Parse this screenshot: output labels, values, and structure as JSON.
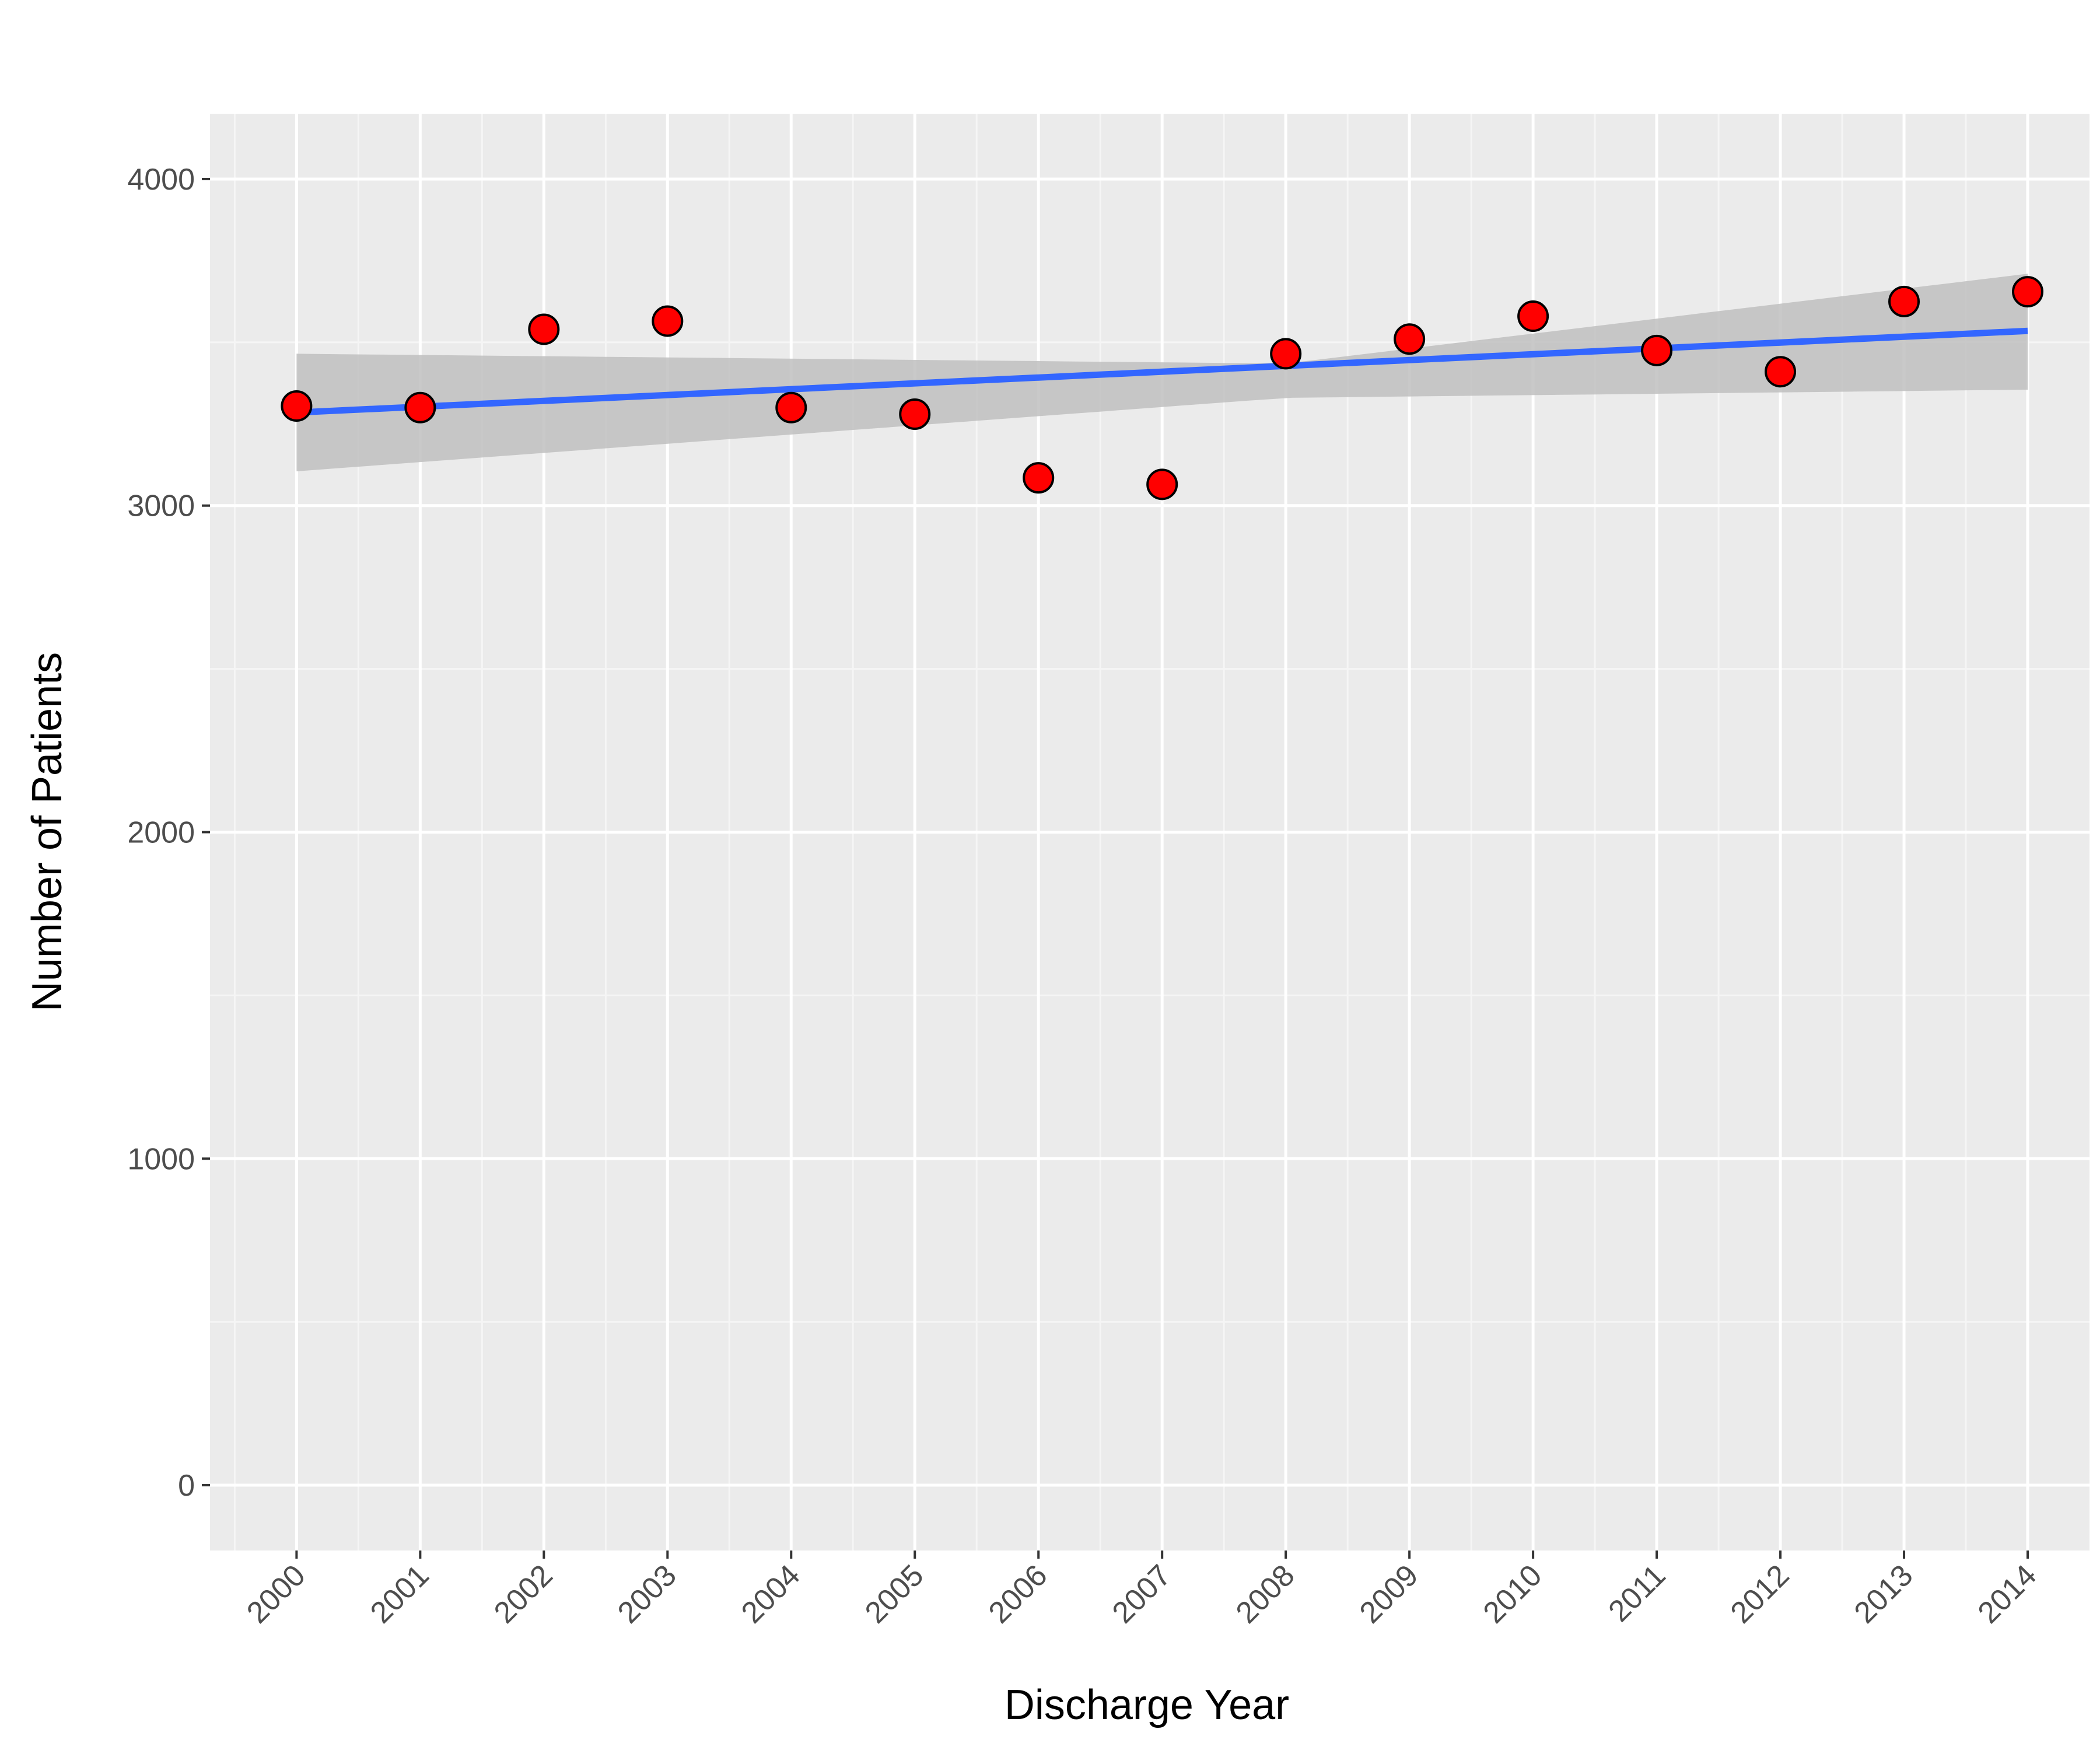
{
  "chart_data": {
    "type": "scatter",
    "title": "",
    "xlabel": "Discharge Year",
    "ylabel": "Number of Patients",
    "x": [
      2000,
      2001,
      2002,
      2003,
      2004,
      2005,
      2006,
      2007,
      2008,
      2009,
      2010,
      2011,
      2012,
      2013,
      2014
    ],
    "x_tick_labels": [
      "2000",
      "2001",
      "2002",
      "2003",
      "2004",
      "2005",
      "2006",
      "2007",
      "2008",
      "2009",
      "2010",
      "2011",
      "2012",
      "2013",
      "2014"
    ],
    "y_ticks": [
      0,
      1000,
      2000,
      3000,
      4000
    ],
    "y_tick_labels": [
      "0",
      "1000",
      "2000",
      "3000",
      "4000"
    ],
    "xlim": [
      1999.3,
      2014.5
    ],
    "ylim": [
      -200,
      4200
    ],
    "grid": true,
    "series": [
      {
        "type": "points",
        "values": [
          3305,
          3300,
          3540,
          3565,
          3300,
          3280,
          3085,
          3065,
          3465,
          3510,
          3580,
          3475,
          3410,
          3625,
          3655
        ],
        "color": "#ff0000",
        "stroke": "#000000"
      },
      {
        "type": "fit_line",
        "method": "linear",
        "start": 3285,
        "end": 3535,
        "color": "#3366ff"
      },
      {
        "type": "confidence_band",
        "lower_start": 3105,
        "lower_end": 3355,
        "upper_start": 3465,
        "upper_end": 3710,
        "upper_mid": 3435,
        "lower_mid": 3330,
        "mid_x": 2008,
        "color": "#bfbfbf"
      }
    ],
    "colors": {
      "panel_background": "#ebebeb",
      "grid_major": "#ffffff",
      "grid_minor": "#f5f5f5",
      "tick_text": "#4d4d4d",
      "axis_title": "#000000"
    }
  }
}
